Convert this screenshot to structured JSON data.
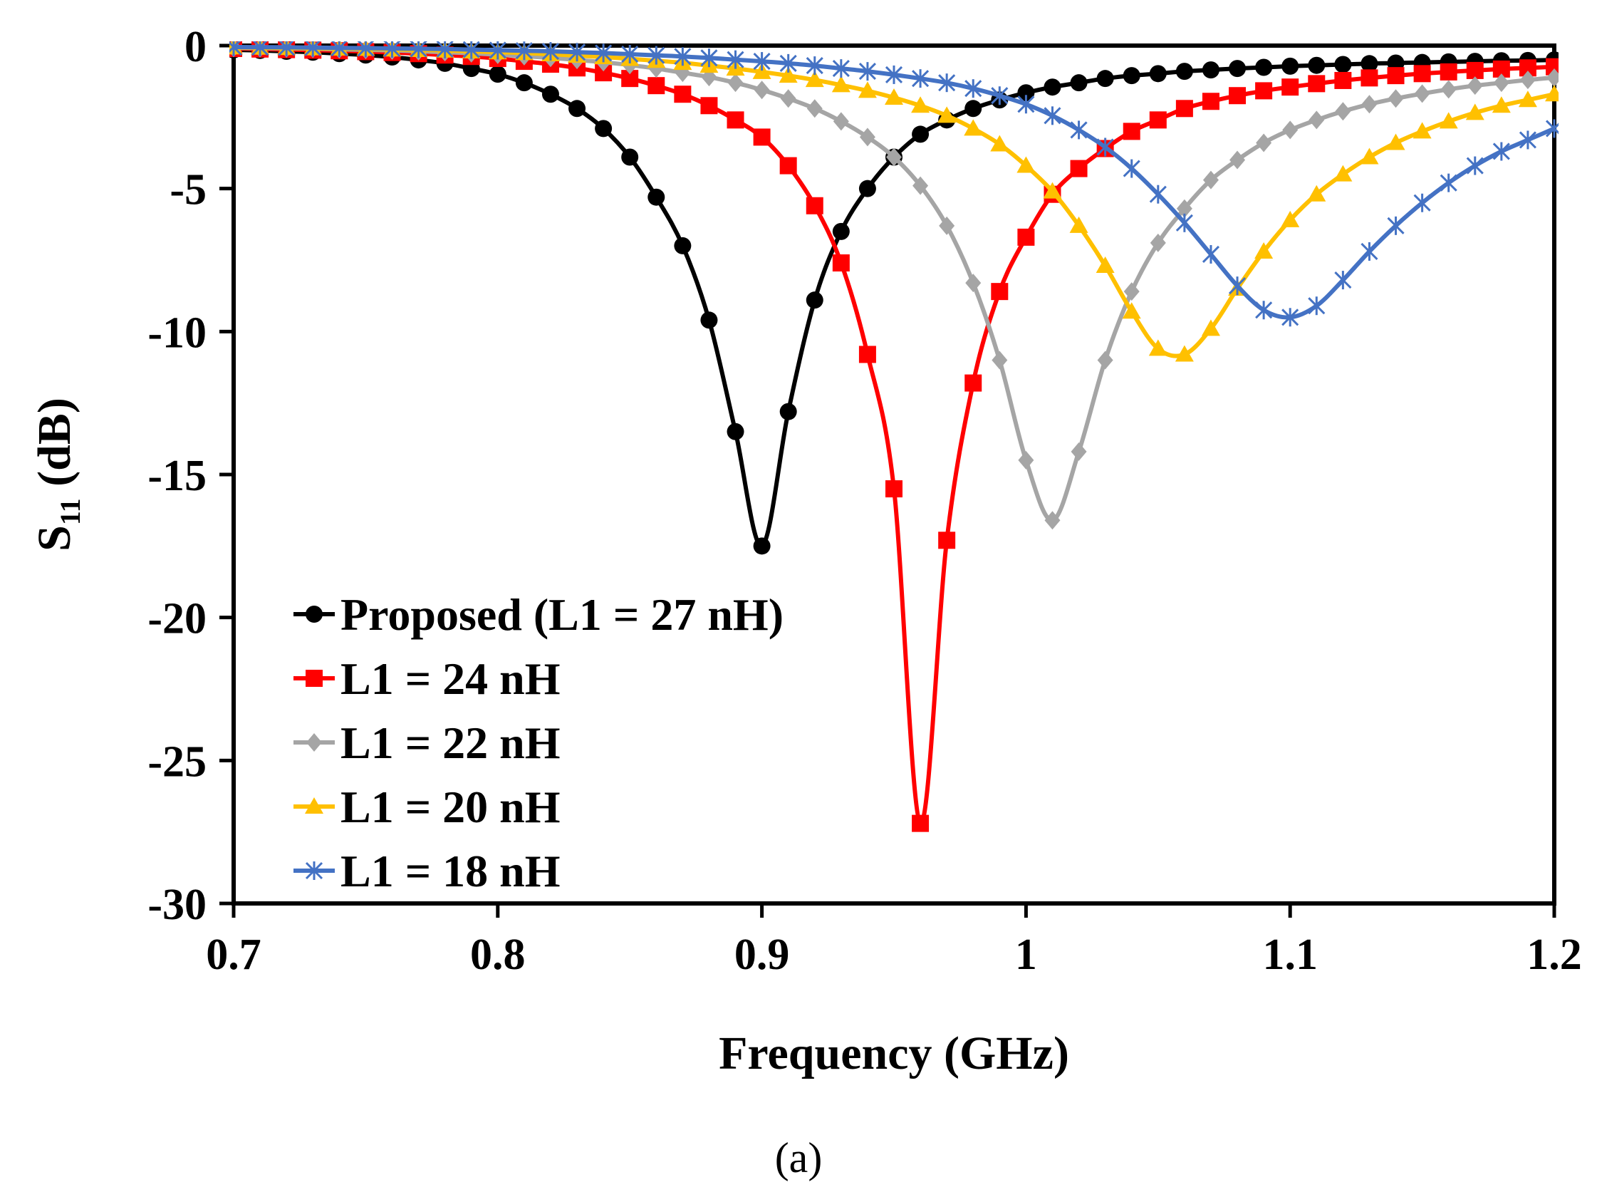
{
  "chart_data": {
    "type": "line",
    "title": "",
    "xlabel": "Frequency (GHz)",
    "ylabel_main": "S",
    "ylabel_sub": "11",
    "ylabel_unit": " (dB)",
    "xlim": [
      0.7,
      1.2
    ],
    "ylim": [
      -30,
      0
    ],
    "xticks": [
      "0.7",
      "0.8",
      "0.9",
      "1",
      "1.1",
      "1.2"
    ],
    "yticks": [
      "0",
      "-5",
      "-10",
      "-15",
      "-20",
      "-25",
      "-30"
    ],
    "grid": false,
    "legend_position": "bottom-left",
    "caption": "(a)",
    "series": [
      {
        "name": "Proposed (L1 = 27 nH)",
        "color": "#000000",
        "marker": "circle",
        "x": [
          0.7,
          0.71,
          0.72,
          0.73,
          0.74,
          0.75,
          0.76,
          0.77,
          0.78,
          0.79,
          0.8,
          0.81,
          0.82,
          0.83,
          0.84,
          0.85,
          0.86,
          0.87,
          0.88,
          0.89,
          0.9,
          0.91,
          0.92,
          0.93,
          0.94,
          0.95,
          0.96,
          0.97,
          0.98,
          0.99,
          1.0,
          1.01,
          1.02,
          1.03,
          1.04,
          1.05,
          1.06,
          1.07,
          1.08,
          1.09,
          1.1,
          1.11,
          1.12,
          1.13,
          1.14,
          1.15,
          1.16,
          1.17,
          1.18,
          1.19,
          1.2
        ],
        "y": [
          -0.15,
          -0.17,
          -0.2,
          -0.23,
          -0.28,
          -0.33,
          -0.4,
          -0.5,
          -0.62,
          -0.8,
          -1.0,
          -1.3,
          -1.7,
          -2.2,
          -2.9,
          -3.9,
          -5.3,
          -7.0,
          -9.6,
          -13.5,
          -17.5,
          -12.8,
          -8.9,
          -6.5,
          -5.0,
          -3.9,
          -3.1,
          -2.6,
          -2.2,
          -1.9,
          -1.65,
          -1.45,
          -1.3,
          -1.15,
          -1.05,
          -0.98,
          -0.9,
          -0.85,
          -0.8,
          -0.76,
          -0.72,
          -0.69,
          -0.66,
          -0.63,
          -0.61,
          -0.59,
          -0.57,
          -0.55,
          -0.53,
          -0.52,
          -0.5
        ]
      },
      {
        "name": "L1 = 24 nH",
        "color": "#ff0000",
        "marker": "square",
        "x": [
          0.7,
          0.71,
          0.72,
          0.73,
          0.74,
          0.75,
          0.76,
          0.77,
          0.78,
          0.79,
          0.8,
          0.81,
          0.82,
          0.83,
          0.84,
          0.85,
          0.86,
          0.87,
          0.88,
          0.89,
          0.9,
          0.91,
          0.92,
          0.93,
          0.94,
          0.95,
          0.96,
          0.97,
          0.98,
          0.99,
          1.0,
          1.01,
          1.02,
          1.03,
          1.04,
          1.05,
          1.06,
          1.07,
          1.08,
          1.09,
          1.1,
          1.11,
          1.12,
          1.13,
          1.14,
          1.15,
          1.16,
          1.17,
          1.18,
          1.19,
          1.2
        ],
        "y": [
          -0.1,
          -0.12,
          -0.14,
          -0.16,
          -0.18,
          -0.21,
          -0.24,
          -0.28,
          -0.33,
          -0.38,
          -0.45,
          -0.55,
          -0.65,
          -0.78,
          -0.95,
          -1.15,
          -1.4,
          -1.7,
          -2.1,
          -2.6,
          -3.2,
          -4.2,
          -5.6,
          -7.6,
          -10.8,
          -15.5,
          -27.2,
          -17.3,
          -11.8,
          -8.6,
          -6.7,
          -5.2,
          -4.3,
          -3.6,
          -3.0,
          -2.6,
          -2.2,
          -1.95,
          -1.75,
          -1.58,
          -1.45,
          -1.33,
          -1.22,
          -1.13,
          -1.05,
          -0.98,
          -0.92,
          -0.87,
          -0.82,
          -0.78,
          -0.74
        ]
      },
      {
        "name": "L1 = 22 nH",
        "color": "#a5a5a5",
        "marker": "diamond",
        "x": [
          0.7,
          0.71,
          0.72,
          0.73,
          0.74,
          0.75,
          0.76,
          0.77,
          0.78,
          0.79,
          0.8,
          0.81,
          0.82,
          0.83,
          0.84,
          0.85,
          0.86,
          0.87,
          0.88,
          0.89,
          0.9,
          0.91,
          0.92,
          0.93,
          0.94,
          0.95,
          0.96,
          0.97,
          0.98,
          0.99,
          1.0,
          1.01,
          1.02,
          1.03,
          1.04,
          1.05,
          1.06,
          1.07,
          1.08,
          1.09,
          1.1,
          1.11,
          1.12,
          1.13,
          1.14,
          1.15,
          1.16,
          1.17,
          1.18,
          1.19,
          1.2
        ],
        "y": [
          -0.08,
          -0.09,
          -0.1,
          -0.11,
          -0.13,
          -0.15,
          -0.17,
          -0.2,
          -0.23,
          -0.27,
          -0.32,
          -0.37,
          -0.43,
          -0.5,
          -0.58,
          -0.68,
          -0.8,
          -0.95,
          -1.1,
          -1.3,
          -1.55,
          -1.85,
          -2.2,
          -2.65,
          -3.2,
          -3.9,
          -4.9,
          -6.3,
          -8.3,
          -11.0,
          -14.5,
          -16.6,
          -14.2,
          -11.0,
          -8.6,
          -6.9,
          -5.7,
          -4.7,
          -4.0,
          -3.4,
          -2.95,
          -2.6,
          -2.3,
          -2.05,
          -1.85,
          -1.68,
          -1.53,
          -1.4,
          -1.3,
          -1.2,
          -1.12
        ]
      },
      {
        "name": "L1 = 20 nH",
        "color": "#ffc000",
        "marker": "triangle",
        "x": [
          0.7,
          0.71,
          0.72,
          0.73,
          0.74,
          0.75,
          0.76,
          0.77,
          0.78,
          0.79,
          0.8,
          0.81,
          0.82,
          0.83,
          0.84,
          0.85,
          0.86,
          0.87,
          0.88,
          0.89,
          0.9,
          0.91,
          0.92,
          0.93,
          0.94,
          0.95,
          0.96,
          0.97,
          0.98,
          0.99,
          1.0,
          1.01,
          1.02,
          1.03,
          1.04,
          1.05,
          1.06,
          1.07,
          1.08,
          1.09,
          1.1,
          1.11,
          1.12,
          1.13,
          1.14,
          1.15,
          1.16,
          1.17,
          1.18,
          1.19,
          1.2
        ],
        "y": [
          -0.06,
          -0.07,
          -0.08,
          -0.09,
          -0.1,
          -0.11,
          -0.13,
          -0.15,
          -0.17,
          -0.2,
          -0.23,
          -0.26,
          -0.3,
          -0.35,
          -0.4,
          -0.46,
          -0.53,
          -0.6,
          -0.7,
          -0.8,
          -0.92,
          -1.05,
          -1.2,
          -1.38,
          -1.58,
          -1.82,
          -2.1,
          -2.45,
          -2.9,
          -3.45,
          -4.2,
          -5.1,
          -6.3,
          -7.7,
          -9.3,
          -10.6,
          -10.8,
          -9.9,
          -8.5,
          -7.2,
          -6.1,
          -5.2,
          -4.5,
          -3.9,
          -3.4,
          -3.0,
          -2.65,
          -2.35,
          -2.1,
          -1.9,
          -1.7
        ]
      },
      {
        "name": "L1 = 18 nH",
        "color": "#4472c4",
        "marker": "star",
        "x": [
          0.7,
          0.71,
          0.72,
          0.73,
          0.74,
          0.75,
          0.76,
          0.77,
          0.78,
          0.79,
          0.8,
          0.81,
          0.82,
          0.83,
          0.84,
          0.85,
          0.86,
          0.87,
          0.88,
          0.89,
          0.9,
          0.91,
          0.92,
          0.93,
          0.94,
          0.95,
          0.96,
          0.97,
          0.98,
          0.99,
          1.0,
          1.01,
          1.02,
          1.03,
          1.04,
          1.05,
          1.06,
          1.07,
          1.08,
          1.09,
          1.1,
          1.11,
          1.12,
          1.13,
          1.14,
          1.15,
          1.16,
          1.17,
          1.18,
          1.19,
          1.2
        ],
        "y": [
          -0.05,
          -0.055,
          -0.06,
          -0.07,
          -0.08,
          -0.09,
          -0.1,
          -0.11,
          -0.12,
          -0.14,
          -0.16,
          -0.18,
          -0.2,
          -0.23,
          -0.26,
          -0.3,
          -0.34,
          -0.38,
          -0.43,
          -0.49,
          -0.55,
          -0.62,
          -0.7,
          -0.8,
          -0.9,
          -1.02,
          -1.15,
          -1.3,
          -1.5,
          -1.75,
          -2.05,
          -2.45,
          -2.95,
          -3.55,
          -4.3,
          -5.2,
          -6.2,
          -7.3,
          -8.4,
          -9.25,
          -9.5,
          -9.1,
          -8.2,
          -7.2,
          -6.3,
          -5.5,
          -4.8,
          -4.2,
          -3.7,
          -3.3,
          -2.9
        ]
      }
    ]
  }
}
